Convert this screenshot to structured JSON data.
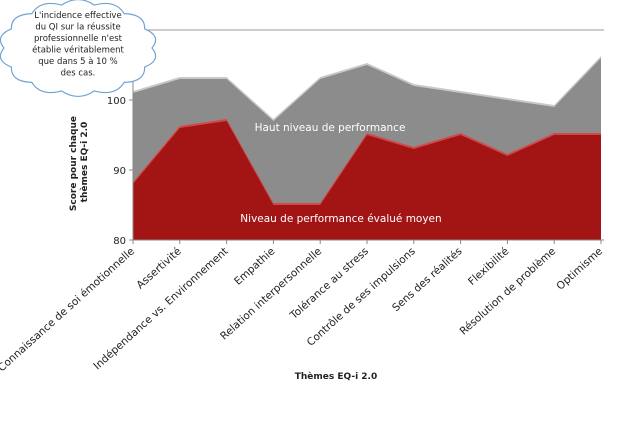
{
  "chart_data": {
    "type": "area",
    "categories": [
      "Connaissance de soi émotionnelle",
      "Assertivité",
      "Indépendance vs. Environnement",
      "Empathie",
      "Relation interpersonnelle",
      "Tolérance au stress",
      "Contrôle de ses impulsions",
      "Sens des réalités",
      "Flexibilité",
      "Résolution de problème",
      "Optimisme"
    ],
    "series": [
      {
        "name": "Haut niveau de performance",
        "values": [
          101,
          103,
          103,
          97,
          103,
          105,
          102,
          101,
          100,
          99,
          106
        ]
      },
      {
        "name": "Niveau de performance évalué moyen",
        "values": [
          88,
          96,
          97,
          85,
          85,
          95,
          93,
          95,
          92,
          95,
          95
        ]
      }
    ],
    "ylabel": "Score pour chaque thèmes EQ-i 2.0",
    "xlabel": "Thèmes EQ-i 2.0",
    "yticks": [
      80,
      90,
      100
    ],
    "ylim": [
      80,
      110
    ],
    "grid": true,
    "colors": {
      "high": "#8c8c8c",
      "mean": "#a31515"
    }
  },
  "callout": {
    "lines": [
      "L'incidence effective",
      "du QI sur la réussite",
      "professionnelle n'est",
      "établie véritablement",
      "que dans 5 à 10 %",
      "des cas."
    ]
  }
}
